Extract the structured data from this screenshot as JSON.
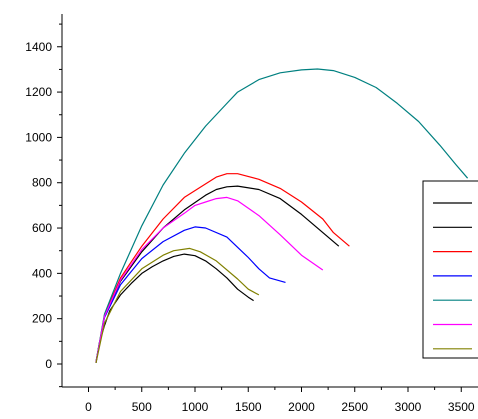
{
  "chart_data": {
    "type": "line",
    "title": "",
    "xlabel": "",
    "ylabel": "",
    "xlim": [
      -300,
      3600
    ],
    "ylim": [
      -100,
      1500
    ],
    "xticks": [
      0,
      500,
      1000,
      1500,
      2000,
      2500,
      3000,
      3500
    ],
    "yticks": [
      0,
      200,
      400,
      600,
      800,
      1000,
      1200,
      1400
    ],
    "xtick_labels": [
      "0",
      "500",
      "1000",
      "1500",
      "2000",
      "2500",
      "3000",
      "3500"
    ],
    "ytick_labels": [
      "0",
      "200",
      "400",
      "600",
      "800",
      "1000",
      "1200",
      "1400"
    ],
    "grid": false,
    "legend": {
      "placement": "right",
      "entry_count": 7
    },
    "series": [
      {
        "color": "#000000",
        "points": [
          [
            70,
            5
          ],
          [
            100,
            90
          ],
          [
            150,
            170
          ],
          [
            200,
            235
          ],
          [
            300,
            305
          ],
          [
            400,
            355
          ],
          [
            500,
            400
          ],
          [
            600,
            430
          ],
          [
            700,
            455
          ],
          [
            800,
            475
          ],
          [
            900,
            485
          ],
          [
            1000,
            478
          ],
          [
            1100,
            455
          ],
          [
            1200,
            420
          ],
          [
            1300,
            380
          ],
          [
            1400,
            330
          ],
          [
            1500,
            295
          ],
          [
            1550,
            280
          ]
        ]
      },
      {
        "color": "#000000",
        "points": [
          [
            70,
            8
          ],
          [
            150,
            210
          ],
          [
            300,
            365
          ],
          [
            500,
            495
          ],
          [
            700,
            600
          ],
          [
            900,
            680
          ],
          [
            1100,
            745
          ],
          [
            1200,
            770
          ],
          [
            1300,
            782
          ],
          [
            1400,
            785
          ],
          [
            1600,
            770
          ],
          [
            1800,
            730
          ],
          [
            2000,
            660
          ],
          [
            2200,
            580
          ],
          [
            2350,
            520
          ]
        ]
      },
      {
        "color": "#ff0000",
        "points": [
          [
            70,
            8
          ],
          [
            150,
            215
          ],
          [
            300,
            380
          ],
          [
            500,
            520
          ],
          [
            700,
            640
          ],
          [
            900,
            735
          ],
          [
            1100,
            795
          ],
          [
            1200,
            825
          ],
          [
            1300,
            840
          ],
          [
            1400,
            840
          ],
          [
            1600,
            815
          ],
          [
            1800,
            775
          ],
          [
            2000,
            715
          ],
          [
            2200,
            640
          ],
          [
            2300,
            580
          ],
          [
            2450,
            520
          ]
        ]
      },
      {
        "color": "#0000ff",
        "points": [
          [
            70,
            8
          ],
          [
            150,
            205
          ],
          [
            300,
            350
          ],
          [
            500,
            465
          ],
          [
            700,
            540
          ],
          [
            900,
            590
          ],
          [
            1000,
            605
          ],
          [
            1100,
            600
          ],
          [
            1300,
            560
          ],
          [
            1400,
            515
          ],
          [
            1500,
            470
          ],
          [
            1600,
            420
          ],
          [
            1700,
            380
          ],
          [
            1850,
            360
          ]
        ]
      },
      {
        "color": "#008080",
        "points": [
          [
            70,
            10
          ],
          [
            150,
            220
          ],
          [
            300,
            400
          ],
          [
            500,
            610
          ],
          [
            700,
            790
          ],
          [
            900,
            930
          ],
          [
            1100,
            1050
          ],
          [
            1300,
            1150
          ],
          [
            1400,
            1200
          ],
          [
            1600,
            1255
          ],
          [
            1800,
            1285
          ],
          [
            2000,
            1298
          ],
          [
            2150,
            1302
          ],
          [
            2300,
            1295
          ],
          [
            2500,
            1265
          ],
          [
            2700,
            1220
          ],
          [
            2900,
            1150
          ],
          [
            3100,
            1070
          ],
          [
            3300,
            965
          ],
          [
            3450,
            880
          ],
          [
            3560,
            820
          ]
        ]
      },
      {
        "color": "#ff00ff",
        "points": [
          [
            70,
            8
          ],
          [
            150,
            210
          ],
          [
            300,
            370
          ],
          [
            500,
            505
          ],
          [
            700,
            600
          ],
          [
            900,
            665
          ],
          [
            1000,
            700
          ],
          [
            1100,
            715
          ],
          [
            1200,
            730
          ],
          [
            1300,
            735
          ],
          [
            1400,
            720
          ],
          [
            1600,
            655
          ],
          [
            1800,
            570
          ],
          [
            2000,
            480
          ],
          [
            2200,
            415
          ]
        ]
      },
      {
        "color": "#808000",
        "points": [
          [
            70,
            5
          ],
          [
            150,
            180
          ],
          [
            300,
            320
          ],
          [
            500,
            420
          ],
          [
            700,
            480
          ],
          [
            800,
            500
          ],
          [
            950,
            510
          ],
          [
            1050,
            495
          ],
          [
            1200,
            455
          ],
          [
            1400,
            375
          ],
          [
            1500,
            330
          ],
          [
            1600,
            305
          ]
        ]
      }
    ]
  }
}
